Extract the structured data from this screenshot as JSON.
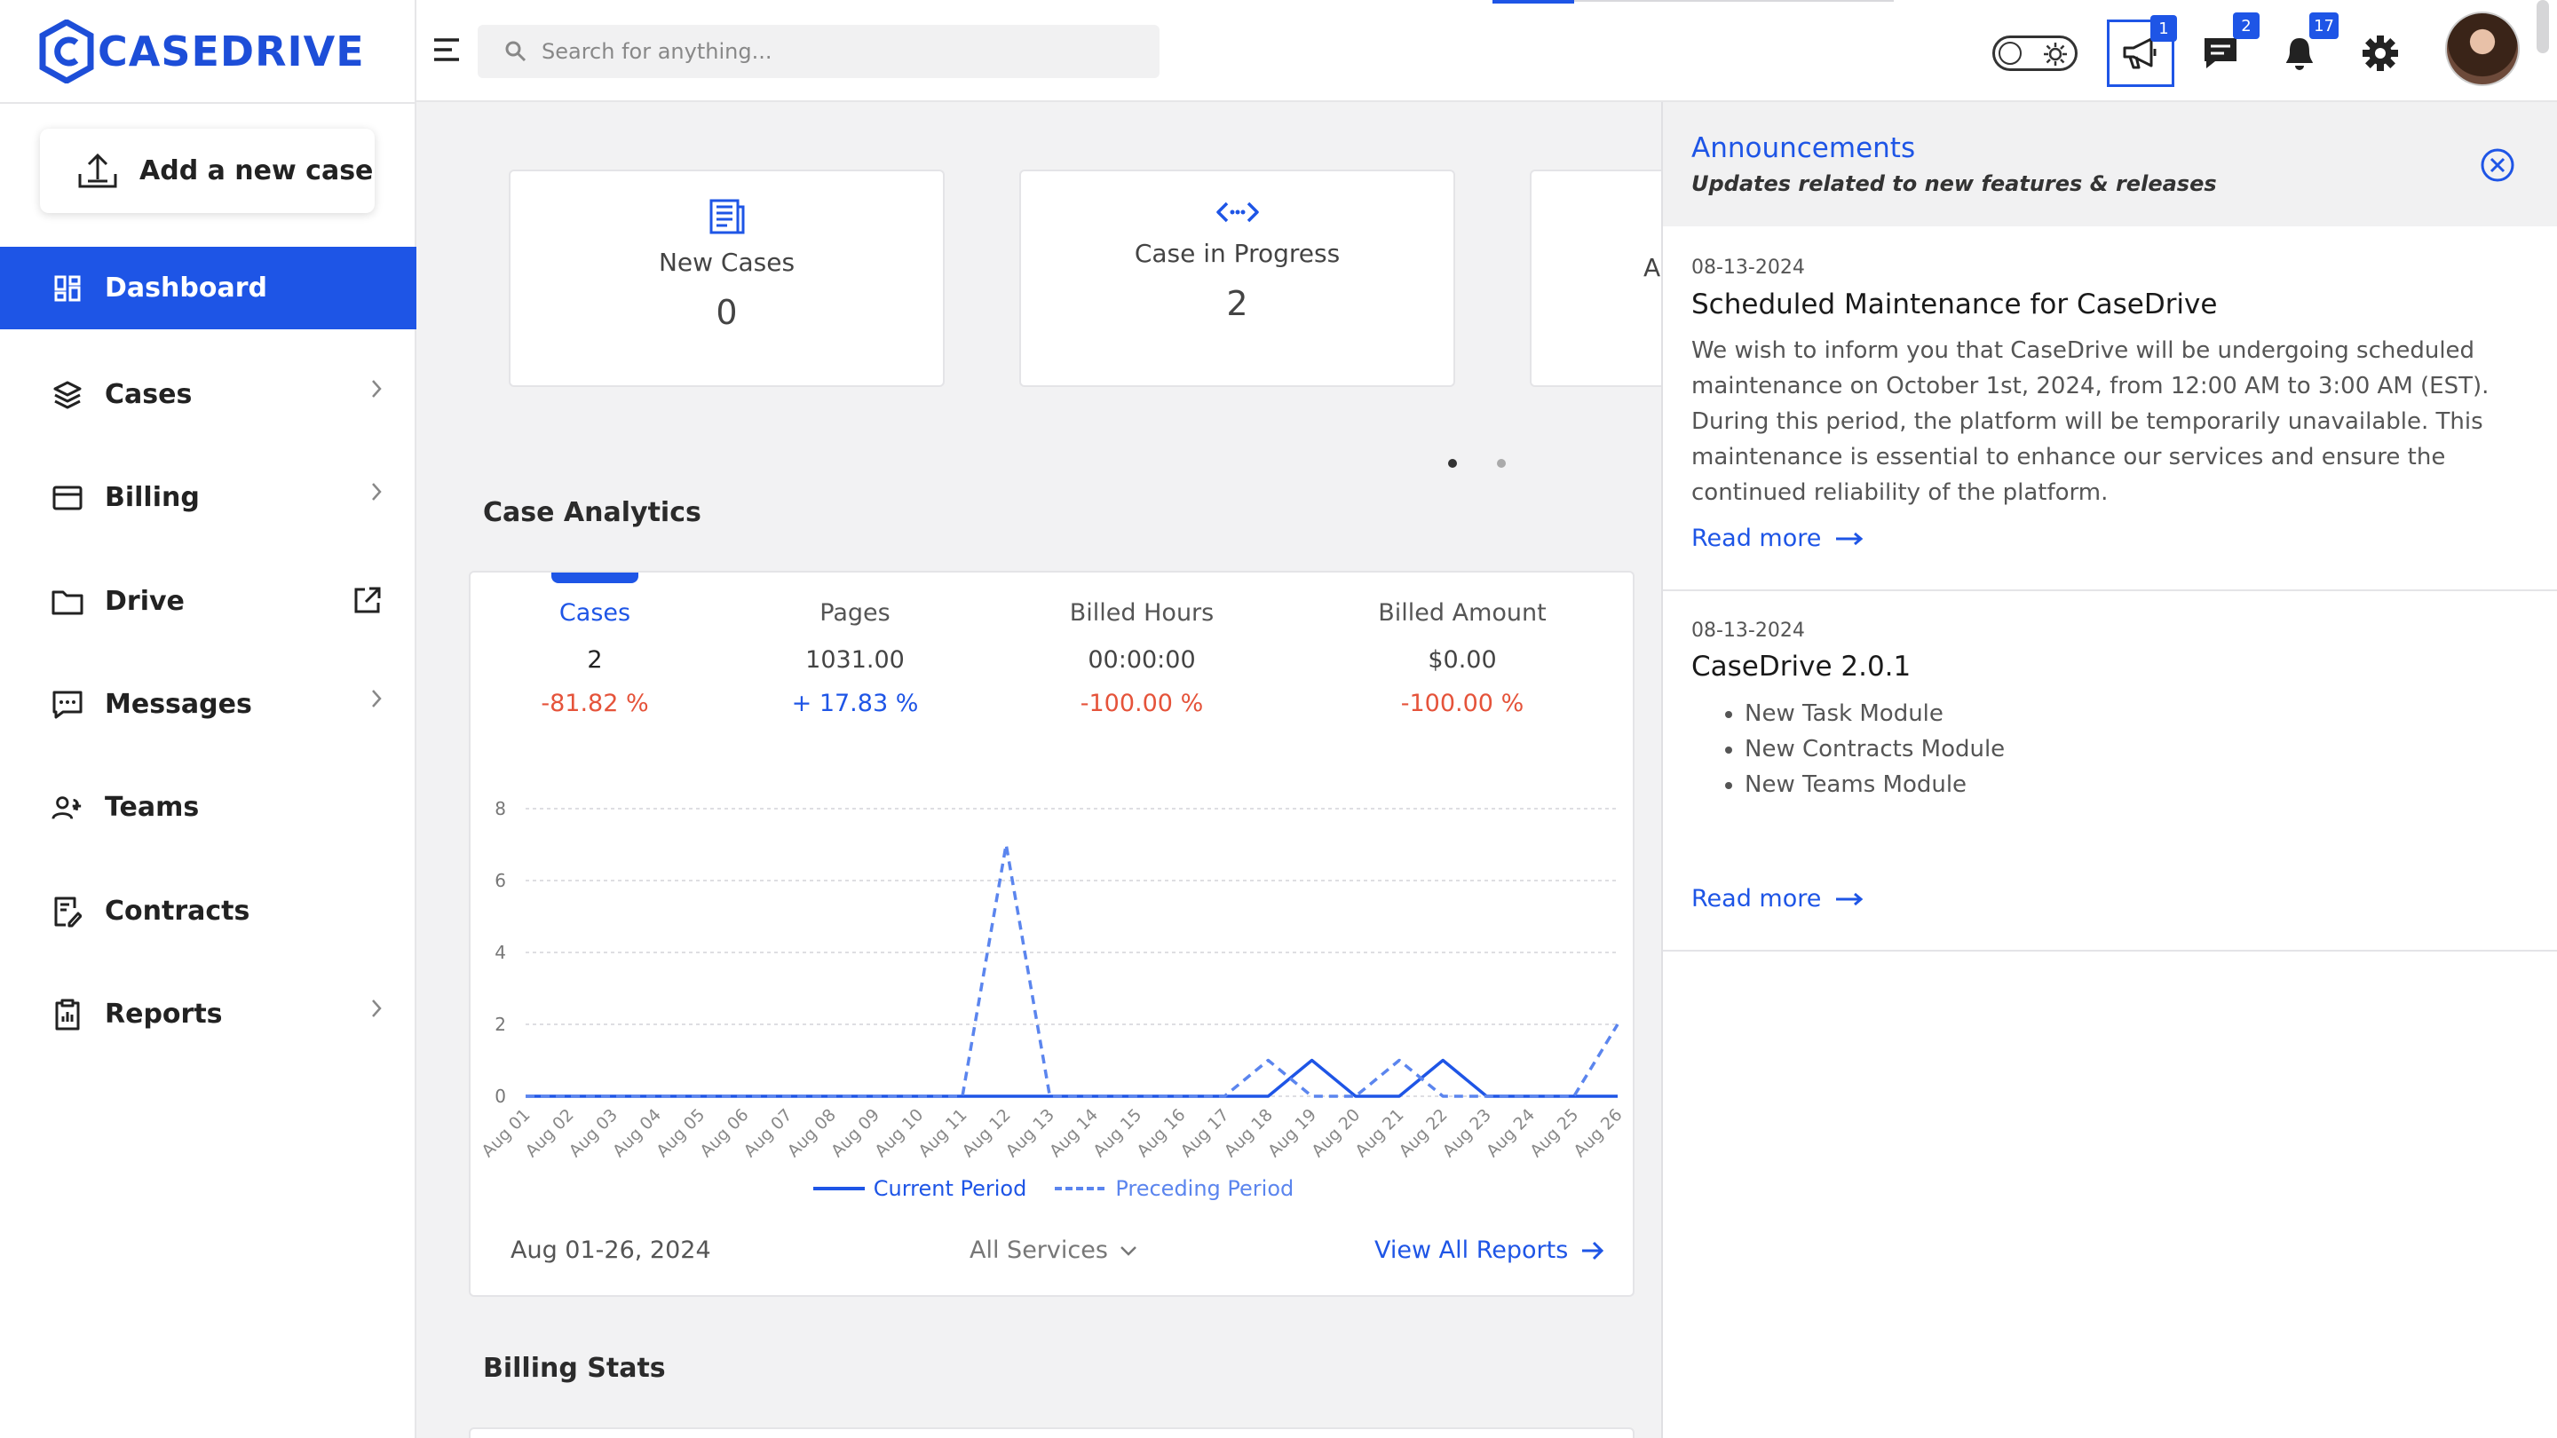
{
  "brand": {
    "name": "CASEDRIVE",
    "color": "#1e55e6"
  },
  "sidebar": {
    "add_case_label": "Add a new case",
    "items": [
      {
        "label": "Dashboard",
        "icon": "dashboard-grid-icon",
        "active": true
      },
      {
        "label": "Cases",
        "icon": "layers-icon",
        "has_chevron": true
      },
      {
        "label": "Billing",
        "icon": "credit-card-icon",
        "has_chevron": true
      },
      {
        "label": "Drive",
        "icon": "folder-icon",
        "external": true
      },
      {
        "label": "Messages",
        "icon": "message-square-icon",
        "has_chevron": true
      },
      {
        "label": "Teams",
        "icon": "users-icon"
      },
      {
        "label": "Contracts",
        "icon": "contract-edit-icon"
      },
      {
        "label": "Reports",
        "icon": "clipboard-icon",
        "has_chevron": true
      }
    ]
  },
  "topbar": {
    "search_placeholder": "Search for anything...",
    "announcements_badge": "1",
    "messages_badge": "2",
    "notifications_badge": "17"
  },
  "stats": [
    {
      "label": "New Cases",
      "value": "0",
      "icon": "document-icon"
    },
    {
      "label": "Case in Progress",
      "value": "2",
      "icon": "code-arrows-icon"
    },
    {
      "label": "A",
      "value": "",
      "icon": ""
    }
  ],
  "analytics": {
    "title": "Case Analytics",
    "metrics": [
      {
        "label": "Cases",
        "value": "2",
        "change": "-81.82 %",
        "trend": "down",
        "active": true
      },
      {
        "label": "Pages",
        "value": "1031.00",
        "change": "+ 17.83 %",
        "trend": "up"
      },
      {
        "label": "Billed Hours",
        "value": "00:00:00",
        "change": "-100.00 %",
        "trend": "down"
      },
      {
        "label": "Billed Amount",
        "value": "$0.00",
        "change": "-100.00 %",
        "trend": "down"
      }
    ],
    "date_range": "Aug 01-26, 2024",
    "services_select": "All Services",
    "view_reports": "View All Reports"
  },
  "chart_data": {
    "type": "line",
    "x": [
      "Aug 01",
      "Aug 02",
      "Aug 03",
      "Aug 04",
      "Aug 05",
      "Aug 06",
      "Aug 07",
      "Aug 08",
      "Aug 09",
      "Aug 10",
      "Aug 11",
      "Aug 12",
      "Aug 13",
      "Aug 14",
      "Aug 15",
      "Aug 16",
      "Aug 17",
      "Aug 18",
      "Aug 19",
      "Aug 20",
      "Aug 21",
      "Aug 22",
      "Aug 23",
      "Aug 24",
      "Aug 25",
      "Aug 26"
    ],
    "ylim": [
      0,
      8
    ],
    "yticks": [
      0,
      2,
      4,
      6,
      8
    ],
    "grid": true,
    "legend_position": "bottom",
    "series": [
      {
        "name": "Current Period",
        "style": "solid",
        "color": "#1e55e6",
        "values": [
          0,
          0,
          0,
          0,
          0,
          0,
          0,
          0,
          0,
          0,
          0,
          0,
          0,
          0,
          0,
          0,
          0,
          0,
          1,
          0,
          0,
          1,
          0,
          0,
          0,
          0
        ]
      },
      {
        "name": "Preceding Period",
        "style": "dashed",
        "color": "#5b85ee",
        "values": [
          0,
          0,
          0,
          0,
          0,
          0,
          0,
          0,
          0,
          0,
          0,
          7,
          0,
          0,
          0,
          0,
          0,
          1,
          0,
          0,
          1,
          0,
          0,
          0,
          0,
          2
        ]
      }
    ]
  },
  "billing": {
    "title": "Billing Stats"
  },
  "announcements": {
    "title": "Announcements",
    "subtitle": "Updates related to new features & releases",
    "items": [
      {
        "date": "08-13-2024",
        "title": "Scheduled Maintenance for CaseDrive",
        "body": "We wish to inform you that CaseDrive will be undergoing scheduled maintenance on October 1st, 2024, from 12:00 AM to 3:00 AM (EST). During this period, the platform will be temporarily unavailable. This maintenance is essential to enhance our services and ensure the continued reliability of the platform.",
        "read_more": "Read more"
      },
      {
        "date": "08-13-2024",
        "title": "CaseDrive 2.0.1",
        "bullets": [
          "New Task Module",
          "New Contracts Module",
          "New Teams Module"
        ],
        "read_more": "Read more"
      }
    ]
  },
  "colors": {
    "accent": "#1e55e6",
    "negative": "#e5533a",
    "background": "#f2f2f3"
  }
}
